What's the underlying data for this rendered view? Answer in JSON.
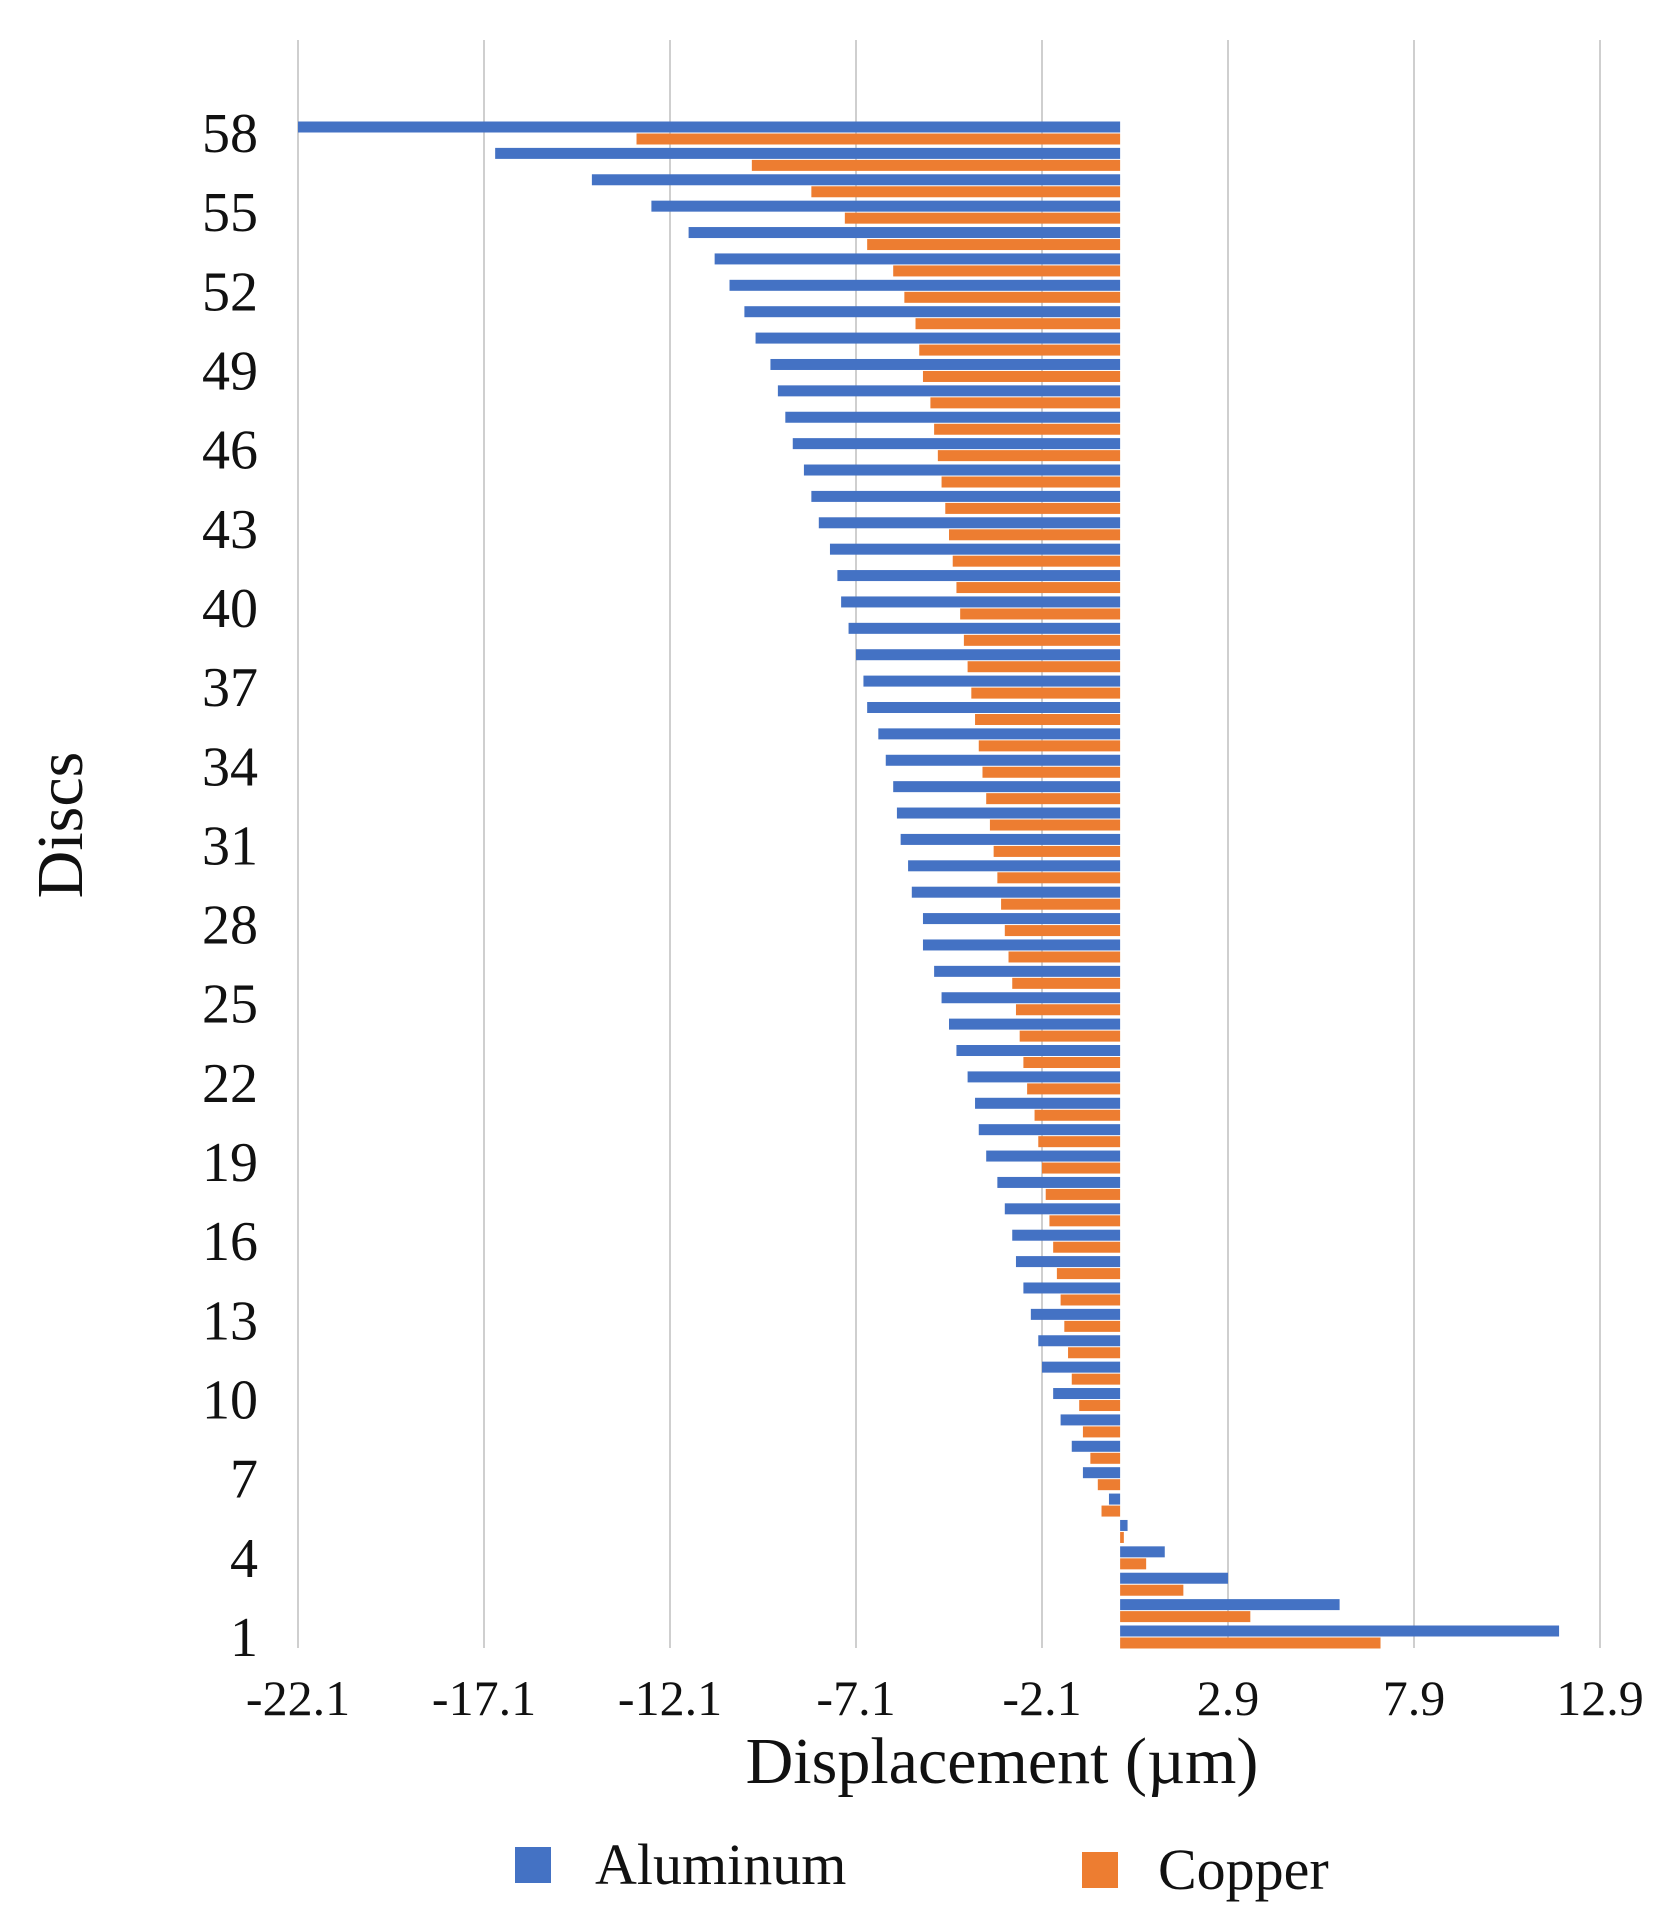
{
  "chart_data": {
    "type": "bar",
    "orientation": "horizontal",
    "title": "",
    "xlabel": "Displacement (µm)",
    "ylabel": "Discs",
    "xlim": [
      -22.1,
      12.9
    ],
    "xticks": [
      "-22.1",
      "-17.1",
      "-12.1",
      "-7.1",
      "-2.1",
      "2.9",
      "7.9",
      "12.9"
    ],
    "yticks": [
      "1",
      "4",
      "7",
      "10",
      "13",
      "16",
      "19",
      "22",
      "25",
      "28",
      "31",
      "34",
      "37",
      "40",
      "43",
      "46",
      "49",
      "52",
      "55",
      "58"
    ],
    "grid": "vertical",
    "legend": "bottom",
    "categories": [
      1,
      2,
      3,
      4,
      5,
      6,
      7,
      8,
      9,
      10,
      11,
      12,
      13,
      14,
      15,
      16,
      17,
      18,
      19,
      20,
      21,
      22,
      23,
      24,
      25,
      26,
      27,
      28,
      29,
      30,
      31,
      32,
      33,
      34,
      35,
      36,
      37,
      38,
      39,
      40,
      41,
      42,
      43,
      44,
      45,
      46,
      47,
      48,
      49,
      50,
      51,
      52,
      53,
      54,
      55,
      56,
      57,
      58
    ],
    "series": [
      {
        "name": "Aluminum",
        "color": "#4472C4",
        "values": [
          11.8,
          5.9,
          2.9,
          1.2,
          0.2,
          -0.3,
          -1.0,
          -1.3,
          -1.6,
          -1.8,
          -2.1,
          -2.2,
          -2.4,
          -2.6,
          -2.8,
          -2.9,
          -3.1,
          -3.3,
          -3.6,
          -3.8,
          -3.9,
          -4.1,
          -4.4,
          -4.6,
          -4.8,
          -5.0,
          -5.3,
          -5.3,
          -5.6,
          -5.7,
          -5.9,
          -6.0,
          -6.1,
          -6.3,
          -6.5,
          -6.8,
          -6.9,
          -7.1,
          -7.3,
          -7.5,
          -7.6,
          -7.8,
          -8.1,
          -8.3,
          -8.5,
          -8.8,
          -9.0,
          -9.2,
          -9.4,
          -9.8,
          -10.1,
          -10.5,
          -10.9,
          -11.6,
          -12.6,
          -14.2,
          -16.8,
          -22.1
        ]
      },
      {
        "name": "Copper",
        "color": "#ED7D31",
        "values": [
          7.0,
          3.5,
          1.7,
          0.7,
          0.1,
          -0.5,
          -0.6,
          -0.8,
          -1.0,
          -1.1,
          -1.3,
          -1.4,
          -1.5,
          -1.6,
          -1.7,
          -1.8,
          -1.9,
          -2.0,
          -2.1,
          -2.2,
          -2.3,
          -2.5,
          -2.6,
          -2.7,
          -2.8,
          -2.9,
          -3.0,
          -3.1,
          -3.2,
          -3.3,
          -3.4,
          -3.5,
          -3.6,
          -3.7,
          -3.8,
          -3.9,
          -4.0,
          -4.1,
          -4.2,
          -4.3,
          -4.4,
          -4.5,
          -4.6,
          -4.7,
          -4.8,
          -4.9,
          -5.0,
          -5.1,
          -5.3,
          -5.4,
          -5.5,
          -5.8,
          -6.1,
          -6.8,
          -7.4,
          -8.3,
          -9.9,
          -13.0
        ]
      }
    ]
  }
}
